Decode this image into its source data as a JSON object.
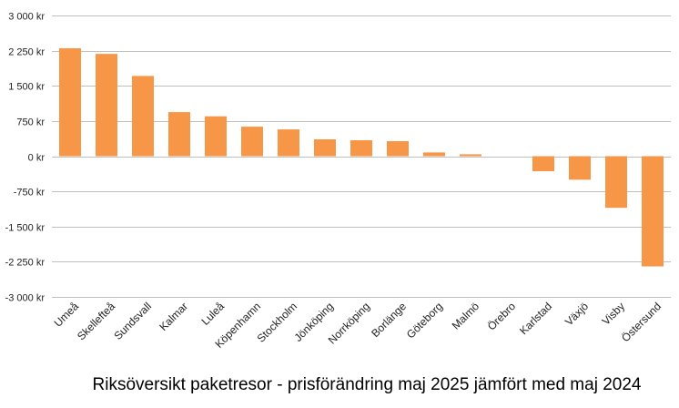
{
  "chart_data": {
    "type": "bar",
    "title": "Riksöversikt paketresor - prisförändring maj 2025 jämfört med maj 2024",
    "xlabel": "",
    "ylabel": "",
    "ylim": [
      -3000,
      3000
    ],
    "grid": true,
    "legend": "none",
    "y_ticks": [
      3000,
      2250,
      1500,
      750,
      0,
      -750,
      -1500,
      -2250,
      -3000
    ],
    "y_tick_labels": [
      "3 000 kr",
      "2 250 kr",
      "1 500 kr",
      "750 kr",
      "0 kr",
      "-750 kr",
      "-1 500 kr",
      "-2 250 kr",
      "-3 000 kr"
    ],
    "categories": [
      "Umeå",
      "Skellefteå",
      "Sundsvall",
      "Kalmar",
      "Luleå",
      "Köpenhamn",
      "Stockholm",
      "Jönköping",
      "Norrköping",
      "Borlänge",
      "Göteborg",
      "Malmö",
      "Örebro",
      "Karlstad",
      "Växjö",
      "Visby",
      "Östersund"
    ],
    "values": [
      2300,
      2180,
      1710,
      940,
      850,
      630,
      570,
      360,
      340,
      320,
      80,
      40,
      0,
      -320,
      -500,
      -1100,
      -2350
    ],
    "bar_color": "#F79646",
    "grid_color": "#BFBFBF"
  }
}
